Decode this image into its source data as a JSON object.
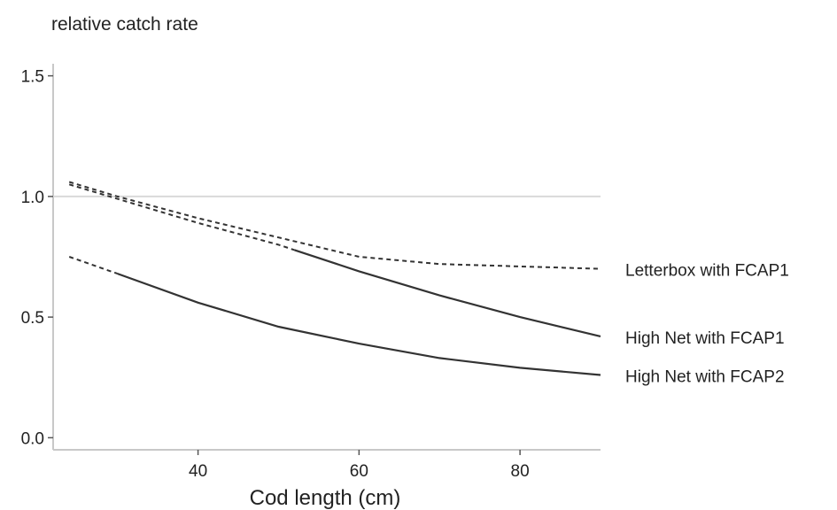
{
  "chart_data": {
    "type": "line",
    "title": "relative catch rate",
    "xlabel": "Cod length (cm)",
    "ylabel": "",
    "xlim": [
      22,
      90
    ],
    "ylim": [
      -0.05,
      1.55
    ],
    "xticks": [
      40,
      60,
      80
    ],
    "yticks": [
      0.0,
      0.5,
      1.0,
      1.5
    ],
    "ytick_labels": [
      "0.0",
      "0.5",
      "1.0",
      "1.5"
    ],
    "reference_line": 1.0,
    "grid": false,
    "legend": "direct labels at right end of each line",
    "series": [
      {
        "name": "Letterbox with FCAP1",
        "style": "dashed",
        "x": [
          24,
          30,
          40,
          50,
          60,
          70,
          80,
          90
        ],
        "y": [
          1.06,
          1.0,
          0.91,
          0.83,
          0.75,
          0.72,
          0.71,
          0.7
        ]
      },
      {
        "name": "High Net with FCAP1",
        "style": "dashed-then-solid",
        "solid_from_x": 52,
        "x": [
          24,
          30,
          40,
          50,
          60,
          70,
          80,
          90
        ],
        "y": [
          1.05,
          0.99,
          0.89,
          0.8,
          0.69,
          0.59,
          0.5,
          0.42
        ]
      },
      {
        "name": "High Net with FCAP2",
        "style": "dashed-then-solid",
        "solid_from_x": 30,
        "x": [
          24,
          30,
          40,
          50,
          60,
          70,
          80,
          90
        ],
        "y": [
          0.75,
          0.68,
          0.56,
          0.46,
          0.39,
          0.33,
          0.29,
          0.26
        ]
      }
    ]
  }
}
